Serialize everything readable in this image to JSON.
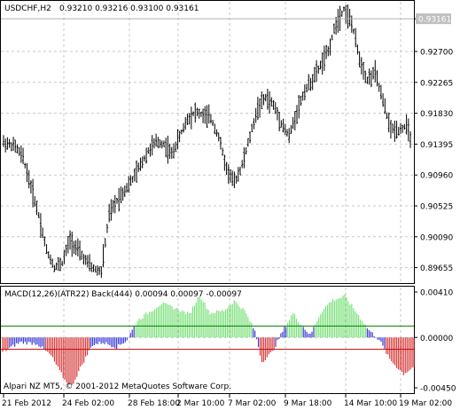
{
  "header": {
    "symbol": "USDCHF,H2",
    "ohlc": "0.93210 0.93216 0.93100 0.93161"
  },
  "indicator": {
    "label": "MACD(12,26)(ATR22) Back(444) 0.00094 0.00097 -0.00097"
  },
  "footer": {
    "copyright": "Alpari NZ MT5, © 2001-2012 MetaQuotes Software Corp."
  },
  "chart_data": [
    {
      "type": "bar",
      "subtype": "ohlc",
      "symbol": "USDCHF",
      "timeframe": "H2",
      "ylim": [
        0.8945,
        0.934
      ],
      "ytick_labels": [
        "0.93161",
        "0.92700",
        "0.92265",
        "0.91830",
        "0.91395",
        "0.90960",
        "0.90525",
        "0.90090",
        "0.89655"
      ],
      "yticks": [
        0.93161,
        0.927,
        0.92265,
        0.9183,
        0.91395,
        0.9096,
        0.90525,
        0.9009,
        0.89655
      ],
      "current_price": 0.93161,
      "xtick_labels": [
        "21 Feb 2012",
        "24 Feb 02:00",
        "28 Feb 18:00",
        "2 Mar 10:00",
        "7 Mar 02:00",
        "9 Mar 18:00",
        "14 Mar 10:00",
        "19 Mar 02:00"
      ],
      "close_path": [
        [
          0,
          0.9142
        ],
        [
          6,
          0.9136
        ],
        [
          10,
          0.912
        ],
        [
          14,
          0.908
        ],
        [
          18,
          0.904
        ],
        [
          22,
          0.899
        ],
        [
          26,
          0.8966
        ],
        [
          30,
          0.8972
        ],
        [
          34,
          0.9005
        ],
        [
          38,
          0.899
        ],
        [
          42,
          0.8975
        ],
        [
          46,
          0.8964
        ],
        [
          50,
          0.896
        ],
        [
          54,
          0.904
        ],
        [
          58,
          0.906
        ],
        [
          62,
          0.9075
        ],
        [
          66,
          0.909
        ],
        [
          70,
          0.911
        ],
        [
          74,
          0.913
        ],
        [
          78,
          0.9142
        ],
        [
          82,
          0.914
        ],
        [
          86,
          0.9125
        ],
        [
          90,
          0.915
        ],
        [
          94,
          0.9175
        ],
        [
          98,
          0.9185
        ],
        [
          102,
          0.918
        ],
        [
          106,
          0.9176
        ],
        [
          110,
          0.915
        ],
        [
          114,
          0.9105
        ],
        [
          118,
          0.9085
        ],
        [
          122,
          0.911
        ],
        [
          126,
          0.915
        ],
        [
          130,
          0.919
        ],
        [
          134,
          0.9205
        ],
        [
          138,
          0.9195
        ],
        [
          142,
          0.917
        ],
        [
          146,
          0.915
        ],
        [
          150,
          0.9185
        ],
        [
          154,
          0.9215
        ],
        [
          158,
          0.923
        ],
        [
          162,
          0.925
        ],
        [
          166,
          0.927
        ],
        [
          170,
          0.931
        ],
        [
          174,
          0.933
        ],
        [
          178,
          0.931
        ],
        [
          182,
          0.926
        ],
        [
          186,
          0.923
        ],
        [
          190,
          0.924
        ],
        [
          194,
          0.92
        ],
        [
          198,
          0.916
        ],
        [
          202,
          0.916
        ],
        [
          206,
          0.9165
        ],
        [
          208,
          0.915
        ]
      ]
    },
    {
      "type": "bar",
      "subtype": "histogram",
      "name": "MACD(12,26)(ATR22) Back(444)",
      "values_shown": [
        0.00094,
        0.00097,
        -0.00097
      ],
      "ylim": [
        -0.0045,
        0.0041
      ],
      "ytick_labels": [
        "0.00410",
        "0.00000",
        "-0.00450"
      ],
      "yticks": [
        0.0041,
        0.0,
        -0.0045
      ],
      "upper_level": 0.00094,
      "lower_level": -0.00097,
      "colors": {
        "positive_above_level": "#7ce07c",
        "neutral": "#3c3cd8",
        "negative_below_level": "#d83c3c",
        "upper_line": "#008000",
        "lower_line": "#cc0000"
      },
      "histogram_path": [
        [
          0,
          -0.0012
        ],
        [
          10,
          -0.0004
        ],
        [
          20,
          -0.0005
        ],
        [
          28,
          -0.0015
        ],
        [
          36,
          -0.0035
        ],
        [
          40,
          -0.004
        ],
        [
          46,
          -0.0022
        ],
        [
          52,
          -0.0006
        ],
        [
          58,
          -0.0004
        ],
        [
          66,
          -0.0008
        ],
        [
          72,
          -0.0002
        ],
        [
          78,
          0.0014
        ],
        [
          86,
          0.0022
        ],
        [
          92,
          0.0028
        ],
        [
          100,
          0.0024
        ],
        [
          108,
          0.0019
        ],
        [
          114,
          0.0035
        ],
        [
          120,
          0.002
        ],
        [
          128,
          0.0022
        ],
        [
          134,
          0.003
        ],
        [
          140,
          0.0022
        ],
        [
          146,
          0.0005
        ],
        [
          150,
          -0.002
        ],
        [
          156,
          -0.0012
        ],
        [
          162,
          0.0005
        ],
        [
          168,
          0.002
        ],
        [
          172,
          0.0012
        ],
        [
          178,
          0.0002
        ],
        [
          184,
          0.002
        ],
        [
          190,
          0.003
        ],
        [
          198,
          0.0034
        ],
        [
          206,
          0.0018
        ],
        [
          212,
          0.0006
        ],
        [
          218,
          -0.0002
        ],
        [
          224,
          -0.0018
        ],
        [
          232,
          -0.003
        ],
        [
          238,
          -0.0024
        ]
      ]
    }
  ],
  "colors": {
    "background": "#ffffff",
    "grid": "#c8c8c8",
    "axis": "#000000",
    "price_bar": "#000000",
    "price_line": "#b0b0b0",
    "price_label_bg": "#c0c0c0"
  }
}
